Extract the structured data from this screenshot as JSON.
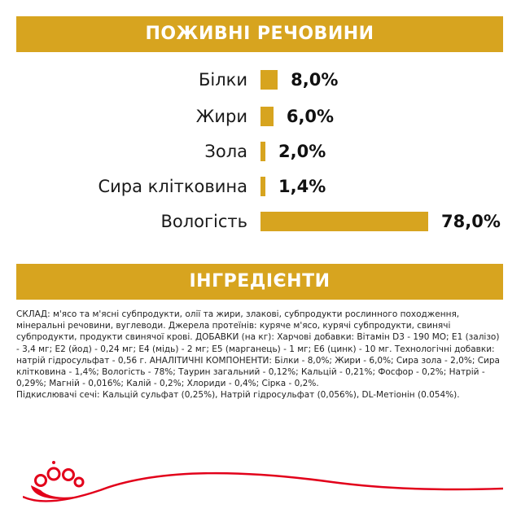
{
  "nutrients": {
    "title": "ПОЖИВНІ РЕЧОВИНИ",
    "accent_color": "#d7a41f",
    "unit": "%",
    "items": [
      {
        "label": "Білки",
        "value_text": "8,0%",
        "value": 8.0
      },
      {
        "label": "Жири",
        "value_text": "6,0%",
        "value": 6.0
      },
      {
        "label": "Зола",
        "value_text": "2,0%",
        "value": 2.0
      },
      {
        "label": "Сира клітковина",
        "value_text": "1,4%",
        "value": 1.4
      },
      {
        "label": "Вологість",
        "value_text": "78,0%",
        "value": 78.0
      }
    ]
  },
  "ingredients": {
    "title": "ІНГРЕДІЄНТИ",
    "composition": "СКЛАД: м'ясо та м'ясні субпродукти, олії та жири, злакові, субпродукти  рослинного походження, мінеральні речовини, вуглеводи. Джерела протеїнів: куряче м'ясо, курячі субпродукти, свинячі субпродукти, продукти свинячої крові. ДОБАВКИ (на кг): Харчові добавки: Вітамін D3 - 190 МО; E1 (залізо) - 3,4 мг; E2 (йод) - 0,24 мг; E4 (мідь) - 2 мг; E5 (марганець) - 1 мг; E6 (цинк) - 10 мг. Технологічні добавки: натрій гідросульфат - 0,56 г. АНАЛІТИЧНІ КОМПОНЕНТИ: Білки - 8,0%; Жири - 6,0%; Сира зола - 2,0%; Сира клітковина - 1,4%; Вологість - 78%; Таурин загальний - 0,12%; Кальцій - 0,21%; Фосфор - 0,2%; Натрій - 0,29%; Магній - 0,016%; Калій - 0,2%; Хлориди - 0,4%; Сірка - 0,2%.",
    "acidifiers": "Підкислювачі сечі: Кальцій сульфат (0,25%), Натрій гідросульфат (0,056%), DL-Метіонін (0.054%)."
  },
  "brand": {
    "logo_icon": "royal-canin-crown-icon",
    "color": "#e2001a"
  }
}
